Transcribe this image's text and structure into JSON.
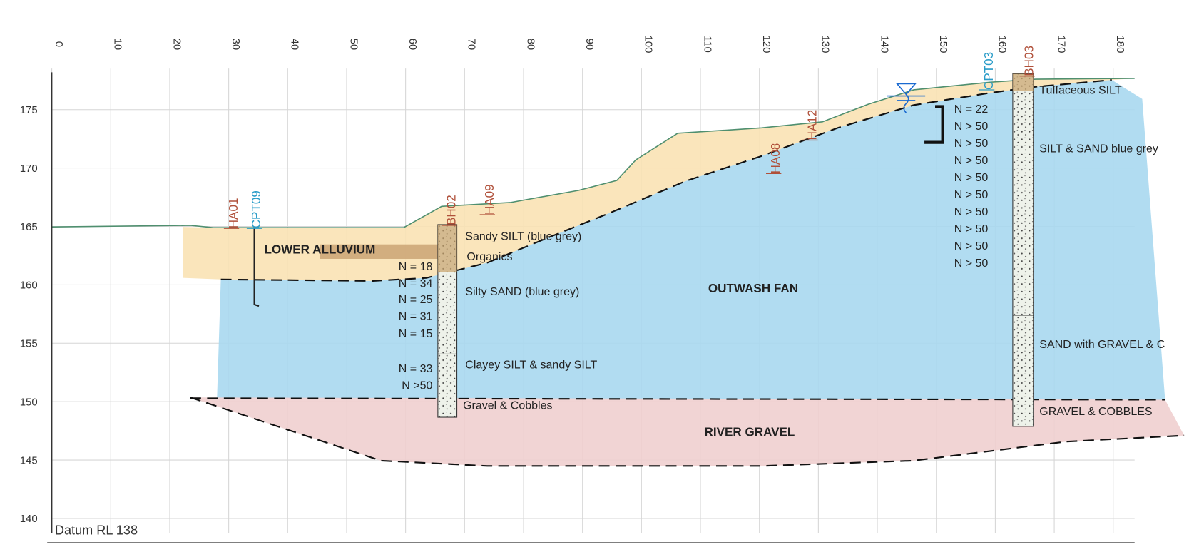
{
  "x_axis": {
    "labels": [
      "0",
      "10",
      "20",
      "30",
      "40",
      "50",
      "60",
      "70",
      "80",
      "90",
      "100",
      "110",
      "120",
      "130",
      "140",
      "150",
      "160",
      "170",
      "180"
    ]
  },
  "y_axis": {
    "labels": [
      "175",
      "170",
      "165",
      "160",
      "155",
      "150",
      "145",
      "140"
    ]
  },
  "datum": "Datum RL 138",
  "units": [
    "LOWER ALLUVIUM",
    "OUTWASH FAN",
    "RIVER GRAVEL"
  ],
  "investigations": [
    {
      "label": "HA01",
      "kind": "hand auger"
    },
    {
      "label": "CPT09",
      "kind": "cpt"
    },
    {
      "label": "BH02",
      "kind": "borehole"
    },
    {
      "label": "HA09",
      "kind": "hand auger"
    },
    {
      "label": "HA08",
      "kind": "hand auger"
    },
    {
      "label": "HA12",
      "kind": "hand auger"
    },
    {
      "label": "CPT03",
      "kind": "cpt"
    },
    {
      "label": "BH03",
      "kind": "borehole"
    }
  ],
  "bh02": {
    "n_values": [
      "N = 18",
      "N = 34",
      "N = 25",
      "N = 31",
      "N = 15",
      "N = 33",
      "N >50"
    ],
    "soils": [
      "Sandy SILT (blue grey)",
      "Organics",
      "Silty SAND (blue grey)",
      "Clayey SILT & sandy SILT",
      "Gravel & Cobbles"
    ]
  },
  "bh03": {
    "n_values": [
      "N = 22",
      "N > 50",
      "N > 50",
      "N > 50",
      "N > 50",
      "N > 50",
      "N > 50",
      "N > 50",
      "N > 50",
      "N > 50"
    ],
    "soils": [
      "Tuffaceous SILT",
      "SILT & SAND blue grey",
      "SAND with GRAVEL & C",
      "GRAVEL & COBBLES"
    ]
  }
}
